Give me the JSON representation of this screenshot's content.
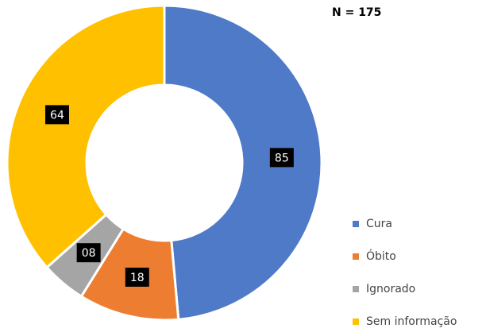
{
  "chart_data": {
    "type": "donut",
    "annotation": "N = 175",
    "categories": [
      "Cura",
      "Óbito",
      "Ignorado",
      "Sem informação"
    ],
    "values": [
      85,
      18,
      8,
      64
    ],
    "value_labels": [
      "85",
      "18",
      "08",
      "64"
    ],
    "colors": [
      "#4e7ac7",
      "#ed7d31",
      "#a5a5a5",
      "#ffc000"
    ],
    "legend": "right"
  }
}
